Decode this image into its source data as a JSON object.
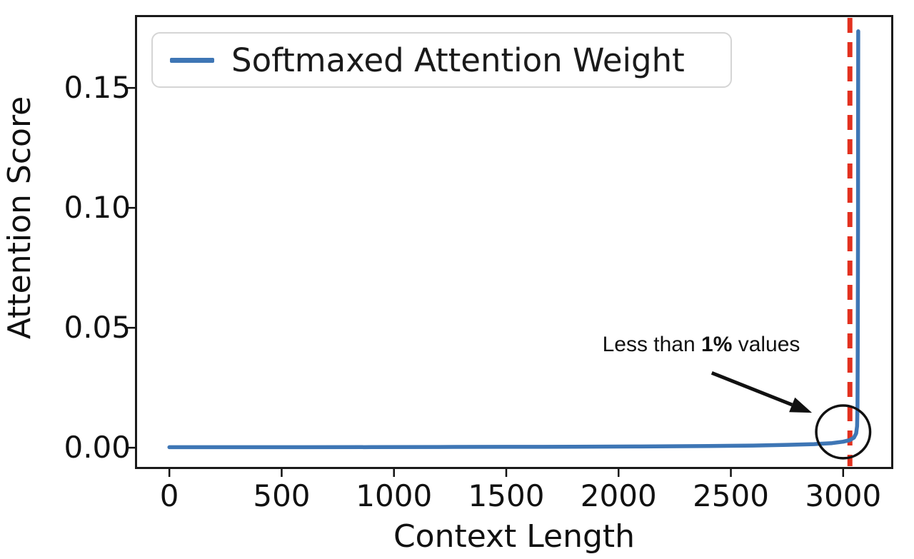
{
  "chart_data": {
    "type": "line",
    "title": "",
    "xlabel": "Context Length",
    "ylabel": "Attention Score",
    "xlim": [
      -150,
      3220
    ],
    "ylim": [
      -0.0083,
      0.1801
    ],
    "xticks": [
      0,
      500,
      1000,
      1500,
      2000,
      2500,
      3000
    ],
    "yticks": [
      0.0,
      0.05,
      0.1,
      0.15
    ],
    "ytick_labels": [
      "0.00",
      "0.05",
      "0.10",
      "0.15"
    ],
    "grid": false,
    "legend": {
      "position": "upper-left",
      "entries": [
        {
          "label": "Softmaxed Attention Weight",
          "color": "#3e76b5"
        }
      ]
    },
    "series": [
      {
        "name": "Softmaxed Attention Weight",
        "color": "#3e76b5",
        "width": 5.5,
        "points": [
          [
            0,
            0.0002
          ],
          [
            300,
            0.0002
          ],
          [
            600,
            0.00022
          ],
          [
            900,
            0.00025
          ],
          [
            1200,
            0.0003
          ],
          [
            1500,
            0.00035
          ],
          [
            1800,
            0.0004
          ],
          [
            2100,
            0.0005
          ],
          [
            2400,
            0.0007
          ],
          [
            2600,
            0.0009
          ],
          [
            2750,
            0.0012
          ],
          [
            2870,
            0.0015
          ],
          [
            2950,
            0.0019
          ],
          [
            3000,
            0.0025
          ],
          [
            3030,
            0.0032
          ],
          [
            3048,
            0.0042
          ],
          [
            3058,
            0.006
          ],
          [
            3062,
            0.009
          ],
          [
            3064,
            0.018
          ],
          [
            3065,
            0.04
          ],
          [
            3066,
            0.09
          ],
          [
            3066.5,
            0.13
          ],
          [
            3067,
            0.1736
          ]
        ]
      }
    ],
    "vline": {
      "x": 3030,
      "color": "#e2311f",
      "style": "dashed",
      "dash": [
        21,
        13
      ],
      "width": 7
    },
    "annotations": {
      "label": {
        "text_prefix": "Less than ",
        "text_bold": "1%",
        "text_suffix": " values",
        "x": 2368,
        "y": 0.0429
      },
      "arrow": {
        "from": [
          2415,
          0.0312
        ],
        "to": [
          2861,
          0.0146
        ],
        "color": "#111111",
        "width": 5
      },
      "circle": {
        "cx": 3000,
        "cy": 0.0066,
        "rx": 120,
        "ry": 0.011,
        "color": "#111111",
        "width": 3.5
      }
    },
    "colors": {
      "axis": "#1a1a1a",
      "tick": "#111111",
      "background": "#ffffff"
    }
  }
}
